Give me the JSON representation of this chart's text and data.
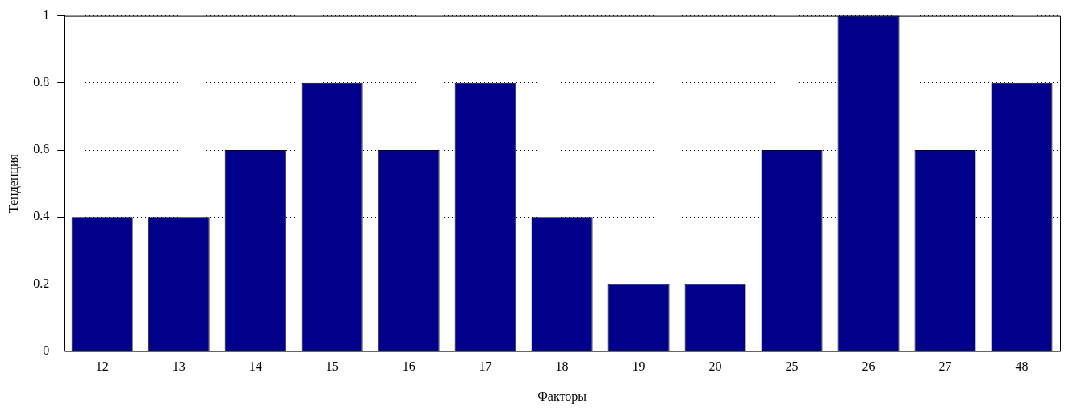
{
  "chart_data": {
    "type": "bar",
    "xlabel": "Факторы",
    "ylabel": "Тенденция",
    "categories": [
      "12",
      "13",
      "14",
      "15",
      "16",
      "17",
      "18",
      "19",
      "20",
      "25",
      "26",
      "27",
      "48"
    ],
    "values": [
      0.4,
      0.4,
      0.6,
      0.8,
      0.6,
      0.8,
      0.4,
      0.2,
      0.2,
      0.6,
      1,
      0.6,
      0.8
    ],
    "color": "#00008b",
    "ylim": [
      0,
      1
    ],
    "yticks": [
      0,
      0.2,
      0.4,
      0.6,
      0.8,
      1
    ],
    "grid": "y",
    "legend": false
  }
}
